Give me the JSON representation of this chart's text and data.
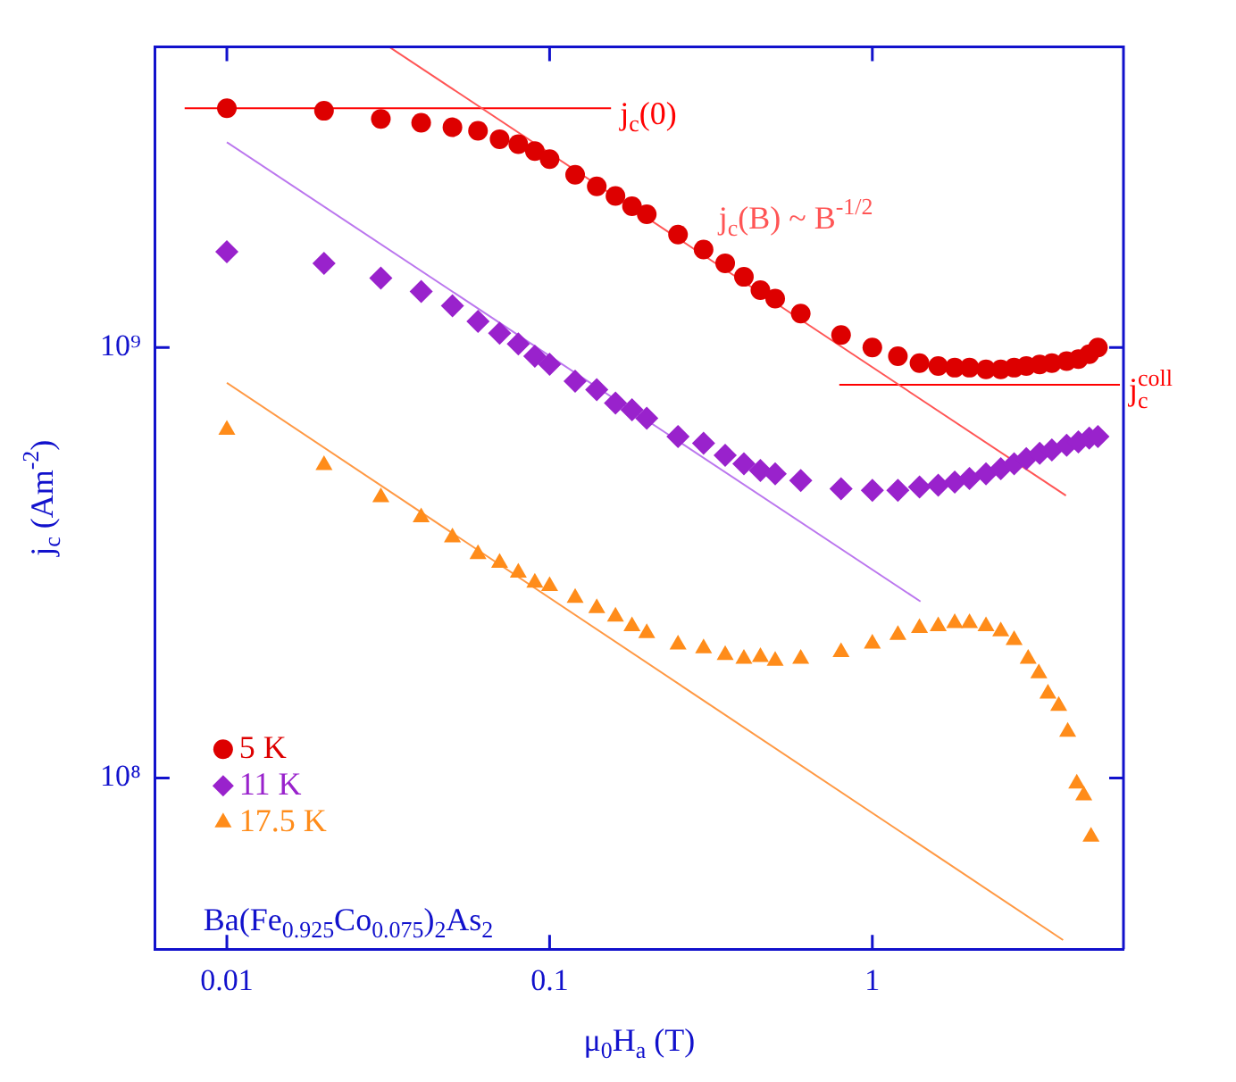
{
  "chart_data": {
    "type": "scatter",
    "xlabel": "μ$_{0}$H$_{a}$ (T)",
    "ylabel": "j$_{c}$ (Am$^{-2}$)",
    "log": "xy",
    "grid": false,
    "legend": "bottom left",
    "xlim": [
      0.006,
      6.0
    ],
    "xticks": [
      0.01,
      0.1,
      1
    ],
    "ylim": [
      40000000.0,
      5000000000.0
    ],
    "yticks": [
      {
        "value": 100000000.0,
        "label": "10⁸"
      },
      {
        "value": 1000000000.0,
        "label": "10⁹"
      }
    ],
    "series": [
      {
        "name": "5 K",
        "color": "#dd0000",
        "marker": "circle",
        "x": [
          0.01,
          0.02,
          0.03,
          0.04,
          0.05,
          0.06,
          0.07,
          0.08,
          0.09,
          0.1,
          0.12,
          0.14,
          0.16,
          0.18,
          0.2,
          0.25,
          0.3,
          0.35,
          0.4,
          0.45,
          0.5,
          0.6,
          0.8,
          1,
          1.2,
          1.4,
          1.6,
          1.8,
          2,
          2.25,
          2.5,
          2.75,
          3,
          3.3,
          3.6,
          4,
          4.35,
          4.7,
          5
        ],
        "values": [
          3600000000.0,
          3550000000.0,
          3400000000.0,
          3330000000.0,
          3250000000.0,
          3190000000.0,
          3050000000.0,
          2970000000.0,
          2860000000.0,
          2740000000.0,
          2520000000.0,
          2370000000.0,
          2250000000.0,
          2130000000.0,
          2040000000.0,
          1830000000.0,
          1690000000.0,
          1570000000.0,
          1460000000.0,
          1360000000.0,
          1300000000.0,
          1200000000.0,
          1070000000.0,
          1000000000.0,
          955000000.0,
          920000000.0,
          906000000.0,
          898000000.0,
          898000000.0,
          890000000.0,
          890000000.0,
          898000000.0,
          906000000.0,
          914000000.0,
          920000000.0,
          930000000.0,
          940000000.0,
          965000000.0,
          1000000000.0
        ]
      },
      {
        "name": "11 K",
        "color": "#9922cc",
        "marker": "diamond",
        "x": [
          0.01,
          0.02,
          0.03,
          0.04,
          0.05,
          0.06,
          0.07,
          0.08,
          0.09,
          0.1,
          0.12,
          0.14,
          0.16,
          0.18,
          0.2,
          0.25,
          0.3,
          0.35,
          0.4,
          0.45,
          0.5,
          0.6,
          0.8,
          1,
          1.2,
          1.4,
          1.6,
          1.8,
          2,
          2.25,
          2.5,
          2.75,
          3,
          3.3,
          3.6,
          4,
          4.35,
          4.7,
          5
        ],
        "values": [
          1670000000.0,
          1570000000.0,
          1450000000.0,
          1350000000.0,
          1250000000.0,
          1150000000.0,
          1080000000.0,
          1020000000.0,
          955000000.0,
          915000000.0,
          835000000.0,
          798000000.0,
          743000000.0,
          717000000.0,
          685000000.0,
          621000000.0,
          599000000.0,
          562000000.0,
          537000000.0,
          518000000.0,
          509000000.0,
          491000000.0,
          470000000.0,
          466000000.0,
          466000000.0,
          474000000.0,
          479000000.0,
          487000000.0,
          496000000.0,
          509000000.0,
          523000000.0,
          537000000.0,
          552000000.0,
          568000000.0,
          578000000.0,
          593000000.0,
          604000000.0,
          616000000.0,
          621000000.0
        ]
      },
      {
        "name": "17.5 K",
        "color": "#ff8c1a",
        "marker": "triangle",
        "x": [
          0.01,
          0.02,
          0.03,
          0.04,
          0.05,
          0.06,
          0.07,
          0.08,
          0.09,
          0.1,
          0.12,
          0.14,
          0.16,
          0.18,
          0.2,
          0.25,
          0.3,
          0.35,
          0.4,
          0.45,
          0.5,
          0.6,
          0.8,
          1,
          1.2,
          1.4,
          1.6,
          1.8,
          2,
          2.25,
          2.5,
          2.75,
          3.04,
          3.28,
          3.5,
          3.78,
          4.03,
          4.3,
          4.52,
          4.76
        ],
        "values": [
          644000000.0,
          533000000.0,
          449000000.0,
          403000000.0,
          362000000.0,
          331000000.0,
          316000000.0,
          300000000.0,
          284000000.0,
          279000000.0,
          262000000.0,
          248000000.0,
          237000000.0,
          225000000.0,
          217000000.0,
          204000000.0,
          200000000.0,
          193000000.0,
          189000000.0,
          191000000.0,
          187000000.0,
          189000000.0,
          196000000.0,
          205000000.0,
          215000000.0,
          223000000.0,
          225000000.0,
          229000000.0,
          229000000.0,
          225000000.0,
          219000000.0,
          209000000.0,
          189000000.0,
          175000000.0,
          157000000.0,
          147000000.0,
          128000000.0,
          97000000.0,
          91000000.0,
          73000000.0
        ]
      },
      {
        "type": "line",
        "name": "j$_{c}$(B) ~ B$^{-1/2}$",
        "color": "#ff5555",
        "marker": "none",
        "line_style": "solid",
        "x": [
          0.0318,
          3.98
        ],
        "values": [
          5000000000.0,
          453000000.0
        ]
      },
      {
        "type": "line",
        "color": "#bb77ee",
        "marker": "none",
        "line_style": "solid",
        "x": [
          0.01,
          1.41
        ],
        "values": [
          3000000000.0,
          257000000.0
        ]
      },
      {
        "type": "line",
        "color": "#ff9944",
        "marker": "none",
        "line_style": "solid",
        "x": [
          0.01,
          3.9
        ],
        "values": [
          828000000.0,
          42000000.0
        ]
      },
      {
        "type": "line",
        "name": "j$_{c}$(0)",
        "color": "#ff0000",
        "marker": "none",
        "line_style": "solid",
        "x": [
          0.0074,
          0.155
        ],
        "values": [
          3600000000.0,
          3600000000.0
        ]
      },
      {
        "type": "line",
        "name": "j$^{coll}$$_{c}$",
        "color": "#ff0000",
        "marker": "none",
        "line_style": "solid",
        "x": [
          0.79,
          5.85
        ],
        "values": [
          820000000.0,
          820000000.0
        ]
      }
    ],
    "annotations": [
      "Ba(Fe$_{0.925}$Co$_{0.075}$)$_{2}$As$_{2}$"
    ]
  }
}
